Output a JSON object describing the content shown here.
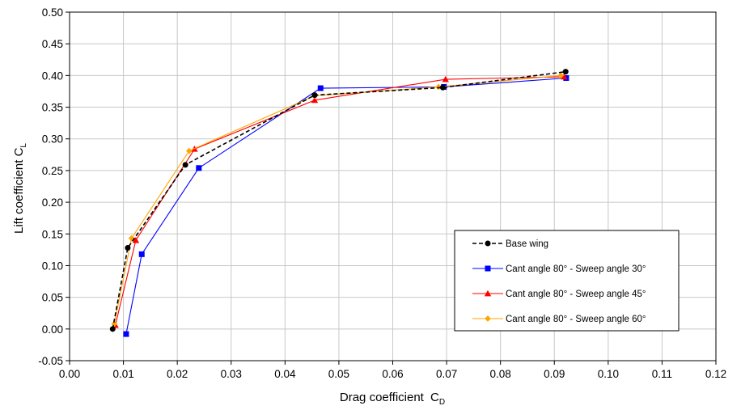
{
  "chart_data": {
    "type": "line",
    "xlabel": "Drag coefficient",
    "xlabel_sub": "D",
    "xlabel_base": "C",
    "ylabel_base": "Lift coefficient C",
    "ylabel_sub": "L",
    "xlim": [
      0.0,
      0.12
    ],
    "ylim": [
      -0.05,
      0.5
    ],
    "xticks": [
      "0.00",
      "0.01",
      "0.02",
      "0.03",
      "0.04",
      "0.05",
      "0.06",
      "0.07",
      "0.08",
      "0.09",
      "0.10",
      "0.11",
      "0.12"
    ],
    "yticks": [
      "-0.05",
      "0.00",
      "0.05",
      "0.10",
      "0.15",
      "0.20",
      "0.25",
      "0.30",
      "0.35",
      "0.40",
      "0.45",
      "0.50"
    ],
    "grid": true,
    "legend_position": "lower-right",
    "series": [
      {
        "name": "Base wing",
        "color": "#000000",
        "marker": "circle",
        "dashed": true,
        "x": [
          0.008,
          0.0108,
          0.0215,
          0.0455,
          0.0693,
          0.0921
        ],
        "y": [
          0.0,
          0.128,
          0.259,
          0.369,
          0.381,
          0.406
        ]
      },
      {
        "name": "Cant angle 80° - Sweep angle 30°",
        "color": "#0000ff",
        "marker": "square",
        "dashed": false,
        "x": [
          0.0105,
          0.0134,
          0.024,
          0.0466,
          0.0695,
          0.0922
        ],
        "y": [
          -0.008,
          0.118,
          0.254,
          0.38,
          0.382,
          0.396
        ]
      },
      {
        "name": "Cant angle 80° - Sweep angle 45°",
        "color": "#ff0000",
        "marker": "triangle",
        "dashed": false,
        "x": [
          0.0085,
          0.0123,
          0.0232,
          0.0455,
          0.0698,
          0.0918
        ],
        "y": [
          0.006,
          0.14,
          0.284,
          0.361,
          0.394,
          0.398
        ]
      },
      {
        "name": "Cant angle 80° - Sweep angle 60°",
        "color": "#ffa500",
        "marker": "diamond",
        "dashed": false,
        "x": [
          0.0083,
          0.0115,
          0.0222,
          0.0455,
          0.0685,
          0.0912
        ],
        "y": [
          0.008,
          0.143,
          0.281,
          0.368,
          0.382,
          0.4
        ]
      }
    ]
  }
}
